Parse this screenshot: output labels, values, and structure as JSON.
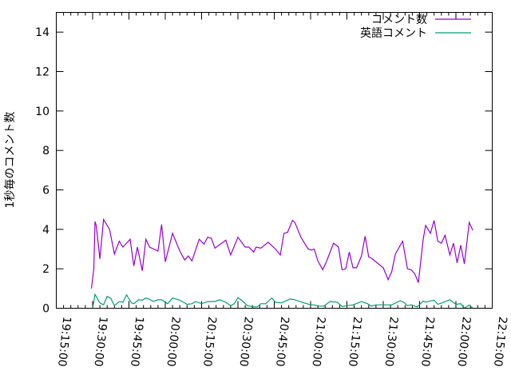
{
  "chart_data": {
    "type": "line",
    "title": "",
    "xlabel": "",
    "ylabel": "1秒毎のコメント数",
    "xlim": [
      "19:15:00",
      "22:15:00"
    ],
    "ylim": [
      0,
      15
    ],
    "x_ticks": [
      "19:15:00",
      "19:30:00",
      "19:45:00",
      "20:00:00",
      "20:15:00",
      "20:30:00",
      "20:45:00",
      "21:00:00",
      "21:15:00",
      "21:30:00",
      "21:45:00",
      "22:00:00",
      "22:15:00"
    ],
    "y_ticks": [
      "0",
      "2",
      "4",
      "6",
      "8",
      "10",
      "12",
      "14"
    ],
    "grid": false,
    "legend_position": "top-right",
    "series": [
      {
        "name": "コメント数",
        "color": "#9400d3",
        "points": [
          [
            "19:29:30",
            1.0
          ],
          [
            "19:30:30",
            2.0
          ],
          [
            "19:31:00",
            4.4
          ],
          [
            "19:31:30",
            4.2
          ],
          [
            "19:33:00",
            2.5
          ],
          [
            "19:34:30",
            4.5
          ],
          [
            "19:37:00",
            4.0
          ],
          [
            "19:39:00",
            2.75
          ],
          [
            "19:41:00",
            3.4
          ],
          [
            "19:42:30",
            3.1
          ],
          [
            "19:45:30",
            3.5
          ],
          [
            "19:47:00",
            2.15
          ],
          [
            "19:48:30",
            3.1
          ],
          [
            "19:50:30",
            1.9
          ],
          [
            "19:52:00",
            3.5
          ],
          [
            "19:53:30",
            3.1
          ],
          [
            "19:57:00",
            2.9
          ],
          [
            "19:58:30",
            4.25
          ],
          [
            "20:00:00",
            2.35
          ],
          [
            "20:03:00",
            3.8
          ],
          [
            "20:06:00",
            2.9
          ],
          [
            "20:08:00",
            2.45
          ],
          [
            "20:09:30",
            2.65
          ],
          [
            "20:11:00",
            2.4
          ],
          [
            "20:14:00",
            3.5
          ],
          [
            "20:16:00",
            3.25
          ],
          [
            "20:17:30",
            3.6
          ],
          [
            "20:19:00",
            3.55
          ],
          [
            "20:20:30",
            3.05
          ],
          [
            "20:25:00",
            3.45
          ],
          [
            "20:27:00",
            2.7
          ],
          [
            "20:30:00",
            3.6
          ],
          [
            "20:33:00",
            3.1
          ],
          [
            "20:34:30",
            3.1
          ],
          [
            "20:36:30",
            2.85
          ],
          [
            "20:37:30",
            3.1
          ],
          [
            "20:39:30",
            3.05
          ],
          [
            "20:42:30",
            3.35
          ],
          [
            "20:45:30",
            3.0
          ],
          [
            "20:47:30",
            2.7
          ],
          [
            "20:49:00",
            3.8
          ],
          [
            "20:50:30",
            3.85
          ],
          [
            "20:52:30",
            4.45
          ],
          [
            "20:53:30",
            4.35
          ],
          [
            "20:56:00",
            3.6
          ],
          [
            "20:59:00",
            3.0
          ],
          [
            "21:00:30",
            2.95
          ],
          [
            "21:01:30",
            3.0
          ],
          [
            "21:03:00",
            2.4
          ],
          [
            "21:05:00",
            1.95
          ],
          [
            "21:06:30",
            2.35
          ],
          [
            "21:09:30",
            3.3
          ],
          [
            "21:11:30",
            3.1
          ],
          [
            "21:13:00",
            1.95
          ],
          [
            "21:14:30",
            2.0
          ],
          [
            "21:16:00",
            2.85
          ],
          [
            "21:17:30",
            2.05
          ],
          [
            "21:19:00",
            2.05
          ],
          [
            "21:21:00",
            2.65
          ],
          [
            "21:22:30",
            3.65
          ],
          [
            "21:24:00",
            2.6
          ],
          [
            "21:25:00",
            2.55
          ],
          [
            "21:28:00",
            2.25
          ],
          [
            "21:30:00",
            2.05
          ],
          [
            "21:32:00",
            1.45
          ],
          [
            "21:33:30",
            1.85
          ],
          [
            "21:35:00",
            2.75
          ],
          [
            "21:38:00",
            3.4
          ],
          [
            "21:40:00",
            2.0
          ],
          [
            "21:41:30",
            1.95
          ],
          [
            "21:43:00",
            1.75
          ],
          [
            "21:44:30",
            1.3
          ],
          [
            "21:46:30",
            3.5
          ],
          [
            "21:47:30",
            4.2
          ],
          [
            "21:49:30",
            3.8
          ],
          [
            "21:51:00",
            4.45
          ],
          [
            "21:52:30",
            3.4
          ],
          [
            "21:54:00",
            3.3
          ],
          [
            "21:55:30",
            3.7
          ],
          [
            "21:57:30",
            2.7
          ],
          [
            "21:59:00",
            3.3
          ],
          [
            "22:00:30",
            2.3
          ],
          [
            "22:02:00",
            3.2
          ],
          [
            "22:03:30",
            2.25
          ],
          [
            "22:05:30",
            4.35
          ],
          [
            "22:07:00",
            3.95
          ]
        ]
      },
      {
        "name": "英語コメント",
        "color": "#009e73",
        "points": [
          [
            "19:30:00",
            0
          ],
          [
            "19:31:00",
            0.7
          ],
          [
            "19:33:00",
            0.27
          ],
          [
            "19:34:30",
            0.17
          ],
          [
            "19:36:00",
            0.6
          ],
          [
            "19:37:30",
            0.5
          ],
          [
            "19:39:00",
            0.13
          ],
          [
            "19:41:00",
            0.34
          ],
          [
            "19:42:30",
            0.3
          ],
          [
            "19:44:00",
            0.68
          ],
          [
            "19:46:00",
            0.27
          ],
          [
            "19:47:00",
            0.23
          ],
          [
            "19:49:00",
            0.43
          ],
          [
            "19:50:30",
            0.41
          ],
          [
            "19:52:00",
            0.52
          ],
          [
            "19:53:30",
            0.45
          ],
          [
            "19:55:00",
            0.34
          ],
          [
            "19:57:00",
            0.43
          ],
          [
            "19:58:30",
            0.43
          ],
          [
            "20:01:00",
            0.23
          ],
          [
            "20:03:00",
            0.52
          ],
          [
            "20:06:00",
            0.41
          ],
          [
            "20:09:00",
            0.2
          ],
          [
            "20:11:00",
            0.23
          ],
          [
            "20:12:30",
            0.34
          ],
          [
            "20:15:00",
            0.23
          ],
          [
            "20:17:30",
            0.34
          ],
          [
            "20:20:30",
            0.34
          ],
          [
            "20:22:30",
            0.43
          ],
          [
            "20:25:00",
            0.3
          ],
          [
            "20:27:00",
            0.13
          ],
          [
            "20:28:30",
            0.23
          ],
          [
            "20:30:00",
            0.54
          ],
          [
            "20:31:30",
            0.41
          ],
          [
            "20:34:00",
            0.13
          ],
          [
            "20:36:30",
            0.07
          ],
          [
            "20:38:00",
            0.07
          ],
          [
            "20:39:30",
            0.23
          ],
          [
            "20:41:30",
            0.23
          ],
          [
            "20:44:00",
            0.52
          ],
          [
            "20:45:30",
            0.3
          ],
          [
            "20:48:00",
            0.27
          ],
          [
            "20:50:30",
            0.41
          ],
          [
            "20:51:30",
            0.47
          ],
          [
            "20:53:30",
            0.43
          ],
          [
            "20:55:30",
            0.34
          ],
          [
            "20:58:30",
            0.23
          ],
          [
            "21:00:00",
            0.17
          ],
          [
            "21:01:30",
            0.17
          ],
          [
            "21:03:00",
            0.11
          ],
          [
            "21:05:30",
            0.11
          ],
          [
            "21:08:00",
            0.34
          ],
          [
            "21:11:00",
            0.31
          ],
          [
            "21:13:00",
            0.09
          ],
          [
            "21:15:00",
            0.13
          ],
          [
            "21:17:30",
            0.17
          ],
          [
            "21:21:00",
            0.34
          ],
          [
            "21:23:30",
            0.23
          ],
          [
            "21:25:00",
            0.11
          ],
          [
            "21:27:00",
            0.17
          ],
          [
            "21:33:30",
            0.17
          ],
          [
            "21:37:00",
            0.38
          ],
          [
            "21:38:30",
            0.3
          ],
          [
            "21:40:00",
            0.13
          ],
          [
            "21:41:30",
            0.17
          ],
          [
            "21:44:00",
            0.07
          ],
          [
            "21:46:30",
            0.36
          ],
          [
            "21:47:30",
            0.31
          ],
          [
            "21:51:00",
            0.41
          ],
          [
            "21:52:30",
            0.2
          ],
          [
            "21:55:00",
            0.31
          ],
          [
            "21:57:30",
            0.43
          ],
          [
            "22:00:00",
            0.2
          ],
          [
            "22:02:00",
            0.23
          ],
          [
            "22:03:30",
            0
          ],
          [
            "22:05:30",
            0.16
          ],
          [
            "22:07:00",
            0
          ]
        ]
      }
    ]
  }
}
